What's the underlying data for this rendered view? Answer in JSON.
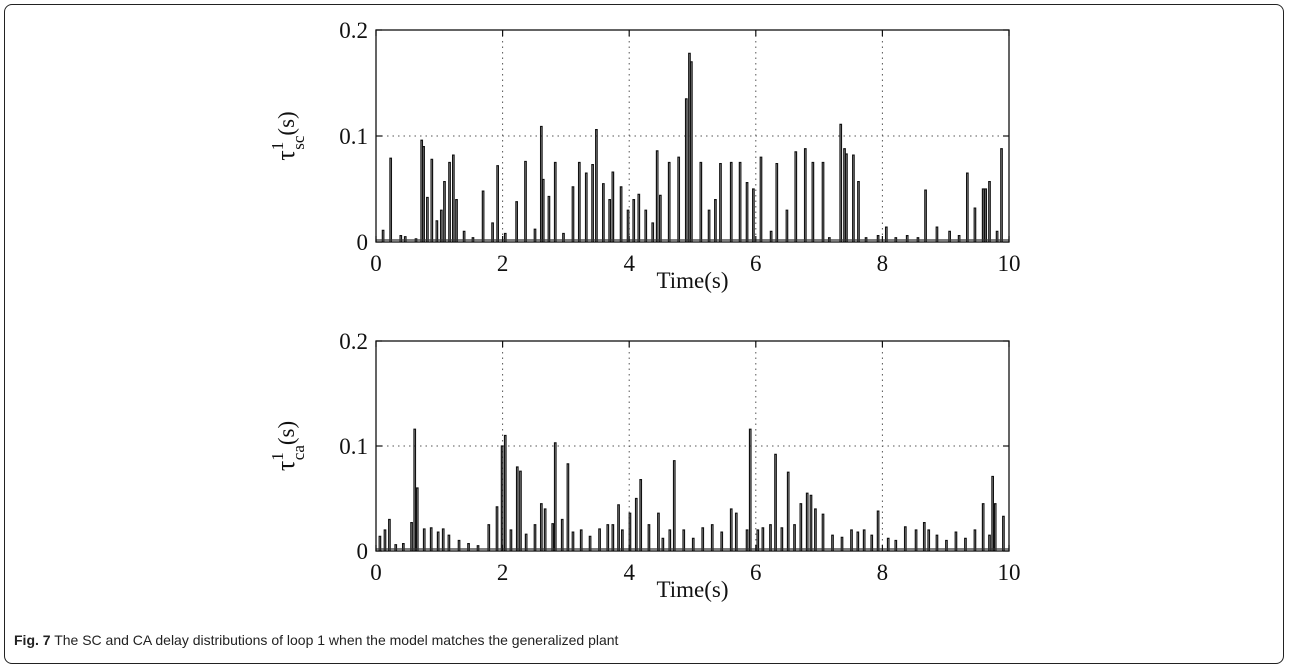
{
  "caption": {
    "label": "Fig. 7",
    "text": "The SC and CA delay distributions of loop 1 when the model matches the generalized plant"
  },
  "chart_data": [
    {
      "type": "line",
      "title": "",
      "xlabel": "Time(s)",
      "ylabel": {
        "symbol": "τ",
        "superscript": "1",
        "subscript": "sc",
        "suffix": "(s)"
      },
      "xlim": [
        0,
        10
      ],
      "ylim": [
        0,
        0.2
      ],
      "xticks": [
        "0",
        "2",
        "4",
        "6",
        "8",
        "10"
      ],
      "yticks": [
        "0",
        "0.1",
        "0.2"
      ],
      "grid": "dotted",
      "spikes": [
        [
          0.1,
          0.011
        ],
        [
          0.22,
          0.079
        ],
        [
          0.38,
          0.006
        ],
        [
          0.45,
          0.005
        ],
        [
          0.62,
          0.003
        ],
        [
          0.71,
          0.096
        ],
        [
          0.74,
          0.09
        ],
        [
          0.8,
          0.042
        ],
        [
          0.87,
          0.078
        ],
        [
          0.95,
          0.02
        ],
        [
          1.02,
          0.03
        ],
        [
          1.07,
          0.057
        ],
        [
          1.15,
          0.075
        ],
        [
          1.21,
          0.082
        ],
        [
          1.26,
          0.04
        ],
        [
          1.38,
          0.01
        ],
        [
          1.52,
          0.004
        ],
        [
          1.68,
          0.048
        ],
        [
          1.83,
          0.018
        ],
        [
          1.91,
          0.072
        ],
        [
          2.03,
          0.008
        ],
        [
          2.21,
          0.038
        ],
        [
          2.35,
          0.076
        ],
        [
          2.5,
          0.012
        ],
        [
          2.6,
          0.109
        ],
        [
          2.63,
          0.059
        ],
        [
          2.72,
          0.043
        ],
        [
          2.82,
          0.075
        ],
        [
          2.95,
          0.008
        ],
        [
          3.1,
          0.052
        ],
        [
          3.2,
          0.075
        ],
        [
          3.31,
          0.065
        ],
        [
          3.41,
          0.073
        ],
        [
          3.47,
          0.106
        ],
        [
          3.58,
          0.055
        ],
        [
          3.68,
          0.04
        ],
        [
          3.73,
          0.066
        ],
        [
          3.86,
          0.052
        ],
        [
          3.97,
          0.03
        ],
        [
          4.06,
          0.04
        ],
        [
          4.14,
          0.045
        ],
        [
          4.25,
          0.03
        ],
        [
          4.36,
          0.018
        ],
        [
          4.43,
          0.086
        ],
        [
          4.48,
          0.044
        ],
        [
          4.62,
          0.075
        ],
        [
          4.77,
          0.08
        ],
        [
          4.89,
          0.135
        ],
        [
          4.94,
          0.178
        ],
        [
          4.97,
          0.17
        ],
        [
          5.12,
          0.075
        ],
        [
          5.25,
          0.03
        ],
        [
          5.35,
          0.04
        ],
        [
          5.43,
          0.074
        ],
        [
          5.6,
          0.075
        ],
        [
          5.74,
          0.075
        ],
        [
          5.85,
          0.056
        ],
        [
          5.95,
          0.05
        ],
        [
          6.07,
          0.08
        ],
        [
          6.23,
          0.01
        ],
        [
          6.32,
          0.074
        ],
        [
          6.48,
          0.03
        ],
        [
          6.62,
          0.085
        ],
        [
          6.77,
          0.088
        ],
        [
          6.89,
          0.075
        ],
        [
          7.05,
          0.075
        ],
        [
          7.15,
          0.004
        ],
        [
          7.33,
          0.111
        ],
        [
          7.39,
          0.088
        ],
        [
          7.42,
          0.083
        ],
        [
          7.53,
          0.082
        ],
        [
          7.61,
          0.057
        ],
        [
          7.73,
          0.004
        ],
        [
          7.92,
          0.006
        ],
        [
          8.05,
          0.014
        ],
        [
          8.2,
          0.004
        ],
        [
          8.38,
          0.006
        ],
        [
          8.55,
          0.004
        ],
        [
          8.67,
          0.049
        ],
        [
          8.85,
          0.014
        ],
        [
          9.05,
          0.01
        ],
        [
          9.2,
          0.006
        ],
        [
          9.33,
          0.065
        ],
        [
          9.45,
          0.032
        ],
        [
          9.58,
          0.05
        ],
        [
          9.62,
          0.05
        ],
        [
          9.68,
          0.057
        ],
        [
          9.8,
          0.01
        ],
        [
          9.87,
          0.088
        ]
      ]
    },
    {
      "type": "line",
      "title": "",
      "xlabel": "Time(s)",
      "ylabel": {
        "symbol": "τ",
        "superscript": "1",
        "subscript": "ca",
        "suffix": "(s)"
      },
      "xlim": [
        0,
        10
      ],
      "ylim": [
        0,
        0.2
      ],
      "xticks": [
        "0",
        "2",
        "4",
        "6",
        "8",
        "10"
      ],
      "yticks": [
        "0",
        "0.1",
        "0.2"
      ],
      "grid": "dotted",
      "spikes": [
        [
          0.05,
          0.014
        ],
        [
          0.13,
          0.02
        ],
        [
          0.2,
          0.03
        ],
        [
          0.3,
          0.006
        ],
        [
          0.42,
          0.007
        ],
        [
          0.55,
          0.027
        ],
        [
          0.6,
          0.116
        ],
        [
          0.64,
          0.06
        ],
        [
          0.75,
          0.021
        ],
        [
          0.86,
          0.022
        ],
        [
          0.97,
          0.018
        ],
        [
          1.05,
          0.021
        ],
        [
          1.14,
          0.015
        ],
        [
          1.3,
          0.01
        ],
        [
          1.45,
          0.007
        ],
        [
          1.6,
          0.005
        ],
        [
          1.77,
          0.025
        ],
        [
          1.9,
          0.042
        ],
        [
          1.98,
          0.1
        ],
        [
          2.03,
          0.11
        ],
        [
          2.12,
          0.02
        ],
        [
          2.22,
          0.08
        ],
        [
          2.27,
          0.076
        ],
        [
          2.36,
          0.016
        ],
        [
          2.5,
          0.025
        ],
        [
          2.6,
          0.045
        ],
        [
          2.66,
          0.04
        ],
        [
          2.78,
          0.026
        ],
        [
          2.82,
          0.103
        ],
        [
          2.93,
          0.03
        ],
        [
          3.02,
          0.083
        ],
        [
          3.1,
          0.018
        ],
        [
          3.23,
          0.02
        ],
        [
          3.37,
          0.014
        ],
        [
          3.52,
          0.021
        ],
        [
          3.65,
          0.025
        ],
        [
          3.73,
          0.025
        ],
        [
          3.82,
          0.044
        ],
        [
          3.88,
          0.02
        ],
        [
          4.0,
          0.036
        ],
        [
          4.1,
          0.05
        ],
        [
          4.17,
          0.068
        ],
        [
          4.3,
          0.025
        ],
        [
          4.45,
          0.036
        ],
        [
          4.52,
          0.012
        ],
        [
          4.63,
          0.02
        ],
        [
          4.7,
          0.086
        ],
        [
          4.85,
          0.02
        ],
        [
          5.0,
          0.012
        ],
        [
          5.15,
          0.022
        ],
        [
          5.3,
          0.025
        ],
        [
          5.45,
          0.018
        ],
        [
          5.6,
          0.04
        ],
        [
          5.68,
          0.036
        ],
        [
          5.85,
          0.02
        ],
        [
          5.9,
          0.116
        ],
        [
          6.02,
          0.02
        ],
        [
          6.1,
          0.022
        ],
        [
          6.22,
          0.025
        ],
        [
          6.3,
          0.092
        ],
        [
          6.4,
          0.022
        ],
        [
          6.5,
          0.075
        ],
        [
          6.6,
          0.025
        ],
        [
          6.7,
          0.045
        ],
        [
          6.8,
          0.055
        ],
        [
          6.86,
          0.053
        ],
        [
          6.93,
          0.04
        ],
        [
          7.05,
          0.035
        ],
        [
          7.2,
          0.015
        ],
        [
          7.35,
          0.013
        ],
        [
          7.5,
          0.02
        ],
        [
          7.6,
          0.018
        ],
        [
          7.7,
          0.02
        ],
        [
          7.82,
          0.015
        ],
        [
          7.92,
          0.038
        ],
        [
          8.08,
          0.012
        ],
        [
          8.2,
          0.01
        ],
        [
          8.35,
          0.023
        ],
        [
          8.52,
          0.02
        ],
        [
          8.65,
          0.027
        ],
        [
          8.72,
          0.02
        ],
        [
          8.85,
          0.015
        ],
        [
          9.0,
          0.01
        ],
        [
          9.15,
          0.018
        ],
        [
          9.3,
          0.012
        ],
        [
          9.45,
          0.02
        ],
        [
          9.58,
          0.045
        ],
        [
          9.68,
          0.015
        ],
        [
          9.73,
          0.071
        ],
        [
          9.77,
          0.045
        ],
        [
          9.9,
          0.033
        ]
      ]
    }
  ]
}
